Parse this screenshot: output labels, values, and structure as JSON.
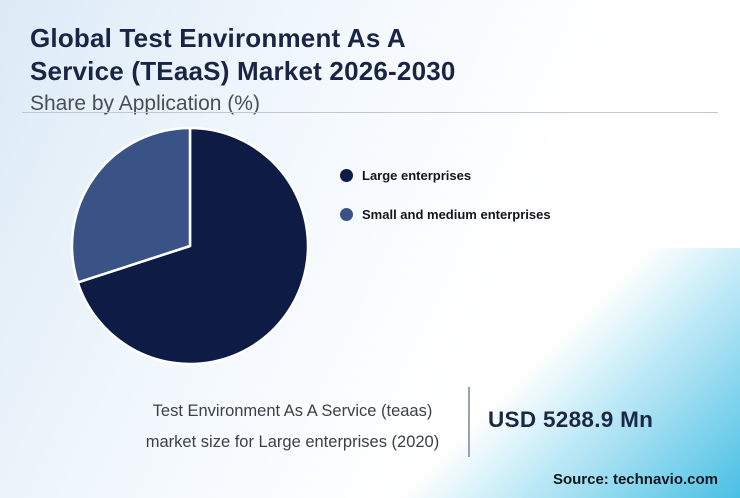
{
  "header": {
    "title_line1": "Global Test Environment As A",
    "title_line2": "Service (TEaaS) Market 2026-2030",
    "subtitle": "Share by Application (%)"
  },
  "chart_data": {
    "type": "pie",
    "title": "Global Test Environment As A Service (TEaaS) Market 2026-2030",
    "subtitle": "Share by Application (%)",
    "unit": "%",
    "start_angle_deg": -90,
    "direction": "clockwise",
    "legend_position": "right",
    "slices": [
      {
        "label": "Large enterprises",
        "value": 70,
        "color": "#0e1c45"
      },
      {
        "label": "Small and medium enterprises",
        "value": 30,
        "color": "#3a5387"
      }
    ]
  },
  "stat": {
    "line1": "Test Environment As A Service (teaas)",
    "line2": "market size for Large enterprises (2020)",
    "value": "USD 5288.9 Mn"
  },
  "footer": {
    "source": "Source: technavio.com"
  },
  "colors": {
    "corner_accent": "#49c0e4",
    "title": "#1a2444"
  }
}
